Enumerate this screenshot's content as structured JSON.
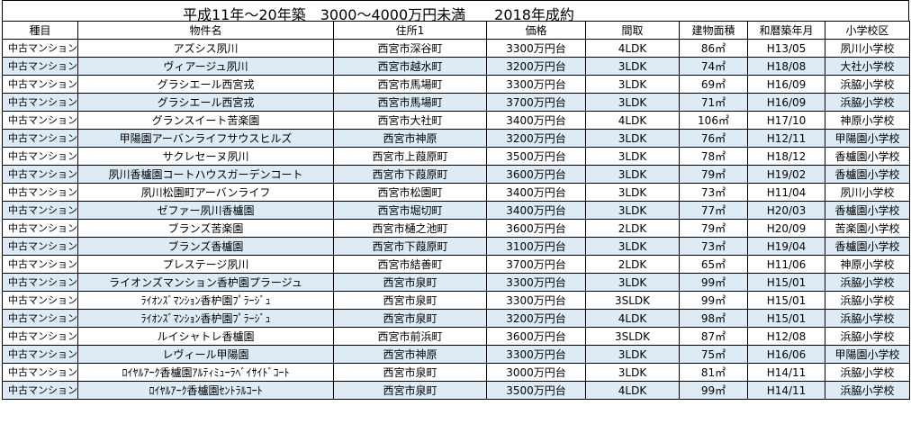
{
  "title": "平成11年～20年築　3000～4000万円未満　　2018年成約",
  "headers": [
    "種目",
    "物件名",
    "住所1",
    "価格",
    "間取",
    "建物面積",
    "和暦築年月",
    "小学校区"
  ],
  "rows": [
    [
      "中古マンション",
      "アズシス夙川",
      "西宮市深谷町",
      "3300万円台",
      "4LDK",
      "86㎡",
      "H13/05",
      "夙川小学校"
    ],
    [
      "中古マンション",
      "ヴィアージュ夙川",
      "西宮市越水町",
      "3200万円台",
      "3LDK",
      "74㎡",
      "H18/08",
      "大社小学校"
    ],
    [
      "中古マンション",
      "グラシエール西宮戎",
      "西宮市馬場町",
      "3300万円台",
      "3LDK",
      "69㎡",
      "H16/09",
      "浜脇小学校"
    ],
    [
      "中古マンション",
      "グラシエール西宮戎",
      "西宮市馬場町",
      "3700万円台",
      "3LDK",
      "71㎡",
      "H16/09",
      "浜脇小学校"
    ],
    [
      "中古マンション",
      "グランスイート苦楽園",
      "西宮市大社町",
      "3400万円台",
      "4LDK",
      "106㎡",
      "H17/10",
      "神原小学校"
    ],
    [
      "中古マンション",
      "甲陽園アーバンライフサウスヒルズ",
      "西宮市神原",
      "3200万円台",
      "3LDK",
      "76㎡",
      "H12/11",
      "甲陽園小学校"
    ],
    [
      "中古マンション",
      "サクレセーヌ夙川",
      "西宮市上葭原町",
      "3500万円台",
      "3LDK",
      "78㎡",
      "H18/12",
      "香櫨園小学校"
    ],
    [
      "中古マンション",
      "夙川香櫨園コートハウスガーデンコート",
      "西宮市下葭原町",
      "3600万円台",
      "3LDK",
      "79㎡",
      "H19/02",
      "香櫨園小学校"
    ],
    [
      "中古マンション",
      "夙川松園町アーバンライフ",
      "西宮市松園町",
      "3400万円台",
      "3LDK",
      "73㎡",
      "H11/04",
      "夙川小学校"
    ],
    [
      "中古マンション",
      "ゼファー夙川香櫨園",
      "西宮市堀切町",
      "3400万円台",
      "3LDK",
      "77㎡",
      "H20/03",
      "香櫨園小学校"
    ],
    [
      "中古マンション",
      "ブランズ苦楽園",
      "西宮市樋之池町",
      "3600万円台",
      "2LDK",
      "79㎡",
      "H20/09",
      "苦楽園小学校"
    ],
    [
      "中古マンション",
      "ブランズ香櫨園",
      "西宮市下葭原町",
      "3100万円台",
      "3LDK",
      "73㎡",
      "H19/04",
      "香櫨園小学校"
    ],
    [
      "中古マンション",
      "プレステージ夙川",
      "西宮市結善町",
      "3700万円台",
      "2LDK",
      "65㎡",
      "H11/06",
      "神原小学校"
    ],
    [
      "中古マンション",
      "ライオンズマンション香枦園プラージュ",
      "西宮市泉町",
      "3300万円台",
      "3LDK",
      "99㎡",
      "H15/01",
      "浜脇小学校"
    ],
    [
      "中古マンション",
      "ﾗｲｵﾝｽﾞﾏﾝｼｮﾝ香枦園ﾌﾟﾗｰｼﾞｭ",
      "西宮市泉町",
      "3300万円台",
      "3SLDK",
      "99㎡",
      "H15/01",
      "浜脇小学校"
    ],
    [
      "中古マンション",
      "ﾗｲｵﾝｽﾞﾏﾝｼｮﾝ香枦園ﾌﾟﾗｰｼﾞｭ",
      "西宮市泉町",
      "3200万円台",
      "4LDK",
      "98㎡",
      "H15/01",
      "浜脇小学校"
    ],
    [
      "中古マンション",
      "ルイシャトレ香櫨園",
      "西宮市前浜町",
      "3600万円台",
      "3SLDK",
      "87㎡",
      "H12/08",
      "浜脇小学校"
    ],
    [
      "中古マンション",
      "レヴィール甲陽園",
      "西宮市神原",
      "3300万円台",
      "3LDK",
      "75㎡",
      "H16/06",
      "甲陽園小学校"
    ],
    [
      "中古マンション",
      "ﾛｲﾔﾙｱｰｸ香櫨園ｱﾙﾃｨﾐｭｰﾗﾍﾞｲｻｲﾄﾞｺｰﾄ",
      "西宮市泉町",
      "3000万円台",
      "3LDK",
      "81㎡",
      "H14/11",
      "浜脇小学校"
    ],
    [
      "中古マンション",
      "ﾛｲﾔﾙｱｰｸ香櫨園ｾﾝﾄﾗﾙｺｰﾄ",
      "西宮市泉町",
      "3500万円台",
      "4LDK",
      "99㎡",
      "H14/11",
      "浜脇小学校"
    ]
  ],
  "colors": {
    "band": "#dcebf5",
    "border": "#000000",
    "background": "#ffffff"
  }
}
